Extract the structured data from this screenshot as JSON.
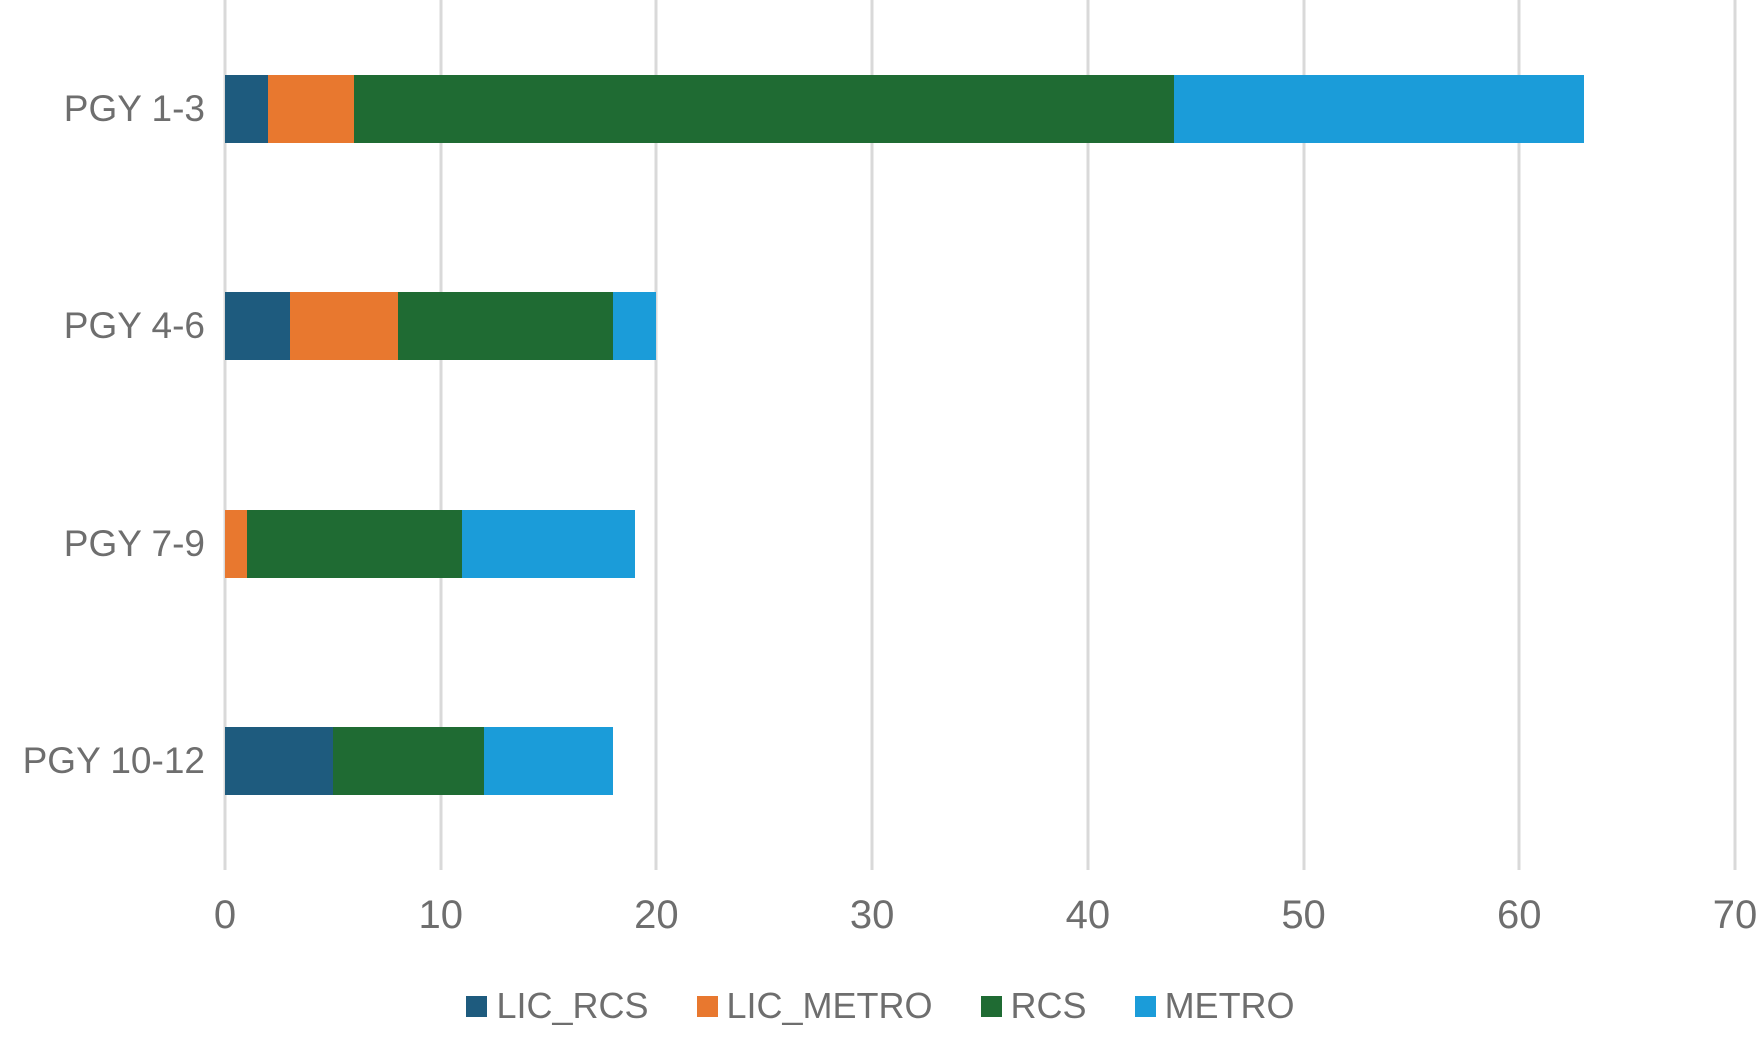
{
  "chart_data": {
    "type": "bar",
    "orientation": "horizontal",
    "stacked": true,
    "title": "",
    "xlabel": "",
    "ylabel": "",
    "categories": [
      "PGY 1-3",
      "PGY 4-6",
      "PGY 7-9",
      "PGY 10-12"
    ],
    "series": [
      {
        "name": "LIC_RCS",
        "color": "#1E5B7E",
        "values": [
          2,
          3,
          0,
          5
        ]
      },
      {
        "name": "LIC_METRO",
        "color": "#E8782F",
        "values": [
          4,
          5,
          1,
          0
        ]
      },
      {
        "name": "RCS",
        "color": "#1F6B33",
        "values": [
          38,
          10,
          10,
          7
        ]
      },
      {
        "name": "METRO",
        "color": "#1B9CD9",
        "values": [
          19,
          2,
          8,
          6
        ]
      }
    ],
    "stack_totals": [
      63,
      20,
      19,
      18
    ],
    "xlim": [
      0,
      70
    ],
    "x_ticks": [
      "0",
      "10",
      "20",
      "30",
      "40",
      "50",
      "60",
      "70"
    ],
    "grid": true,
    "legend_position": "bottom"
  },
  "styles": {
    "background_color": "#FFFFFF",
    "gridline_color": "#D9D9D9",
    "axis_text_color": "#6E6E6E",
    "legend_text_color": "#6E6E6E"
  }
}
